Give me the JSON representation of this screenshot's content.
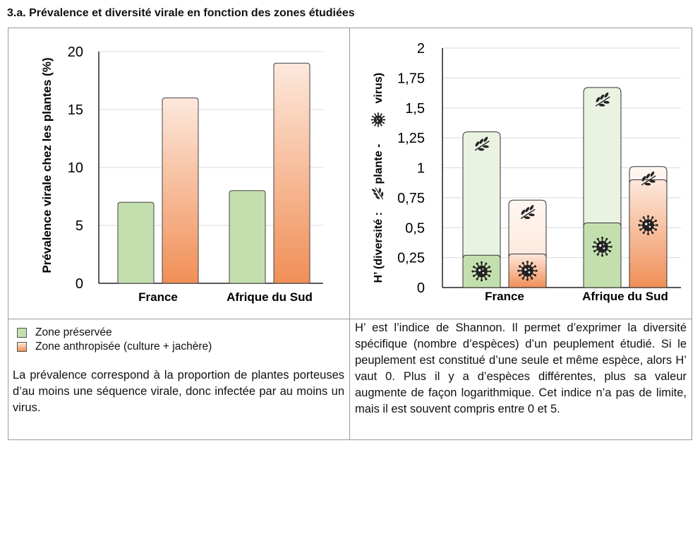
{
  "page_title": "3.a. Prévalence et diversité virale en fonction des zones étudiées",
  "colors": {
    "preserved": "#c3dfae",
    "preserved_stroke": "#6f9a57",
    "anthro_top": "#fde8dc",
    "anthro_bottom": "#f08f57",
    "anthro_stroke": "#555555",
    "grid": "#d9d9d9"
  },
  "legend": {
    "preserved_label": "Zone préservée",
    "anthro_label": "Zone anthropisée (culture + jachère)"
  },
  "notes": {
    "prevalence": "La prévalence correspond à la proportion de plantes porteuses d’au moins une séquence virale, donc infectée par au moins un virus.",
    "shannon": "H’ est l’indice de Shannon. Il permet d’exprimer la diversité spécifique (nombre d’espèces) d’un peuplement étudié. Si le peuplement est constitué d’une seule et même espèce, alors H’ vaut 0. Plus il y a d’espèces différentes, plus sa valeur augmente de façon logarithmique. Cet indice n’a pas de limite, mais il est souvent compris entre 0 et 5."
  },
  "chart_data": [
    {
      "type": "bar",
      "title": "",
      "ylabel": "Prévalence virale chez les plantes (%)",
      "xlabel": "",
      "categories": [
        "France",
        "Afrique du Sud"
      ],
      "series": [
        {
          "name": "Zone préservée",
          "values": [
            7,
            8
          ]
        },
        {
          "name": "Zone anthropisée (culture + jachère)",
          "values": [
            16,
            19
          ]
        }
      ],
      "ylim": [
        0,
        20
      ],
      "yticks": [
        0,
        5,
        10,
        15,
        20
      ],
      "ytick_labels": [
        "0",
        "5",
        "10",
        "15",
        "20"
      ],
      "grid": true
    },
    {
      "type": "bar",
      "title": "",
      "ylabel_parts": [
        "H’ (diversité :",
        "plante -",
        "virus)"
      ],
      "xlabel": "",
      "categories": [
        "France",
        "Afrique du Sud"
      ],
      "series": [
        {
          "name": "Zone préservée",
          "virus_values": [
            0.27,
            0.54
          ],
          "plant_values": [
            1.3,
            1.67
          ]
        },
        {
          "name": "Zone anthropisée (culture + jachère)",
          "virus_values": [
            0.28,
            0.9
          ],
          "plant_values": [
            0.73,
            1.01
          ]
        }
      ],
      "ylim": [
        0,
        2
      ],
      "yticks": [
        0,
        0.25,
        0.5,
        0.75,
        1,
        1.25,
        1.5,
        1.75,
        2
      ],
      "ytick_labels": [
        "0",
        "0,25",
        "0,5",
        "0,75",
        "1",
        "1,25",
        "1,5",
        "1,75",
        "2"
      ],
      "grid": true
    }
  ]
}
